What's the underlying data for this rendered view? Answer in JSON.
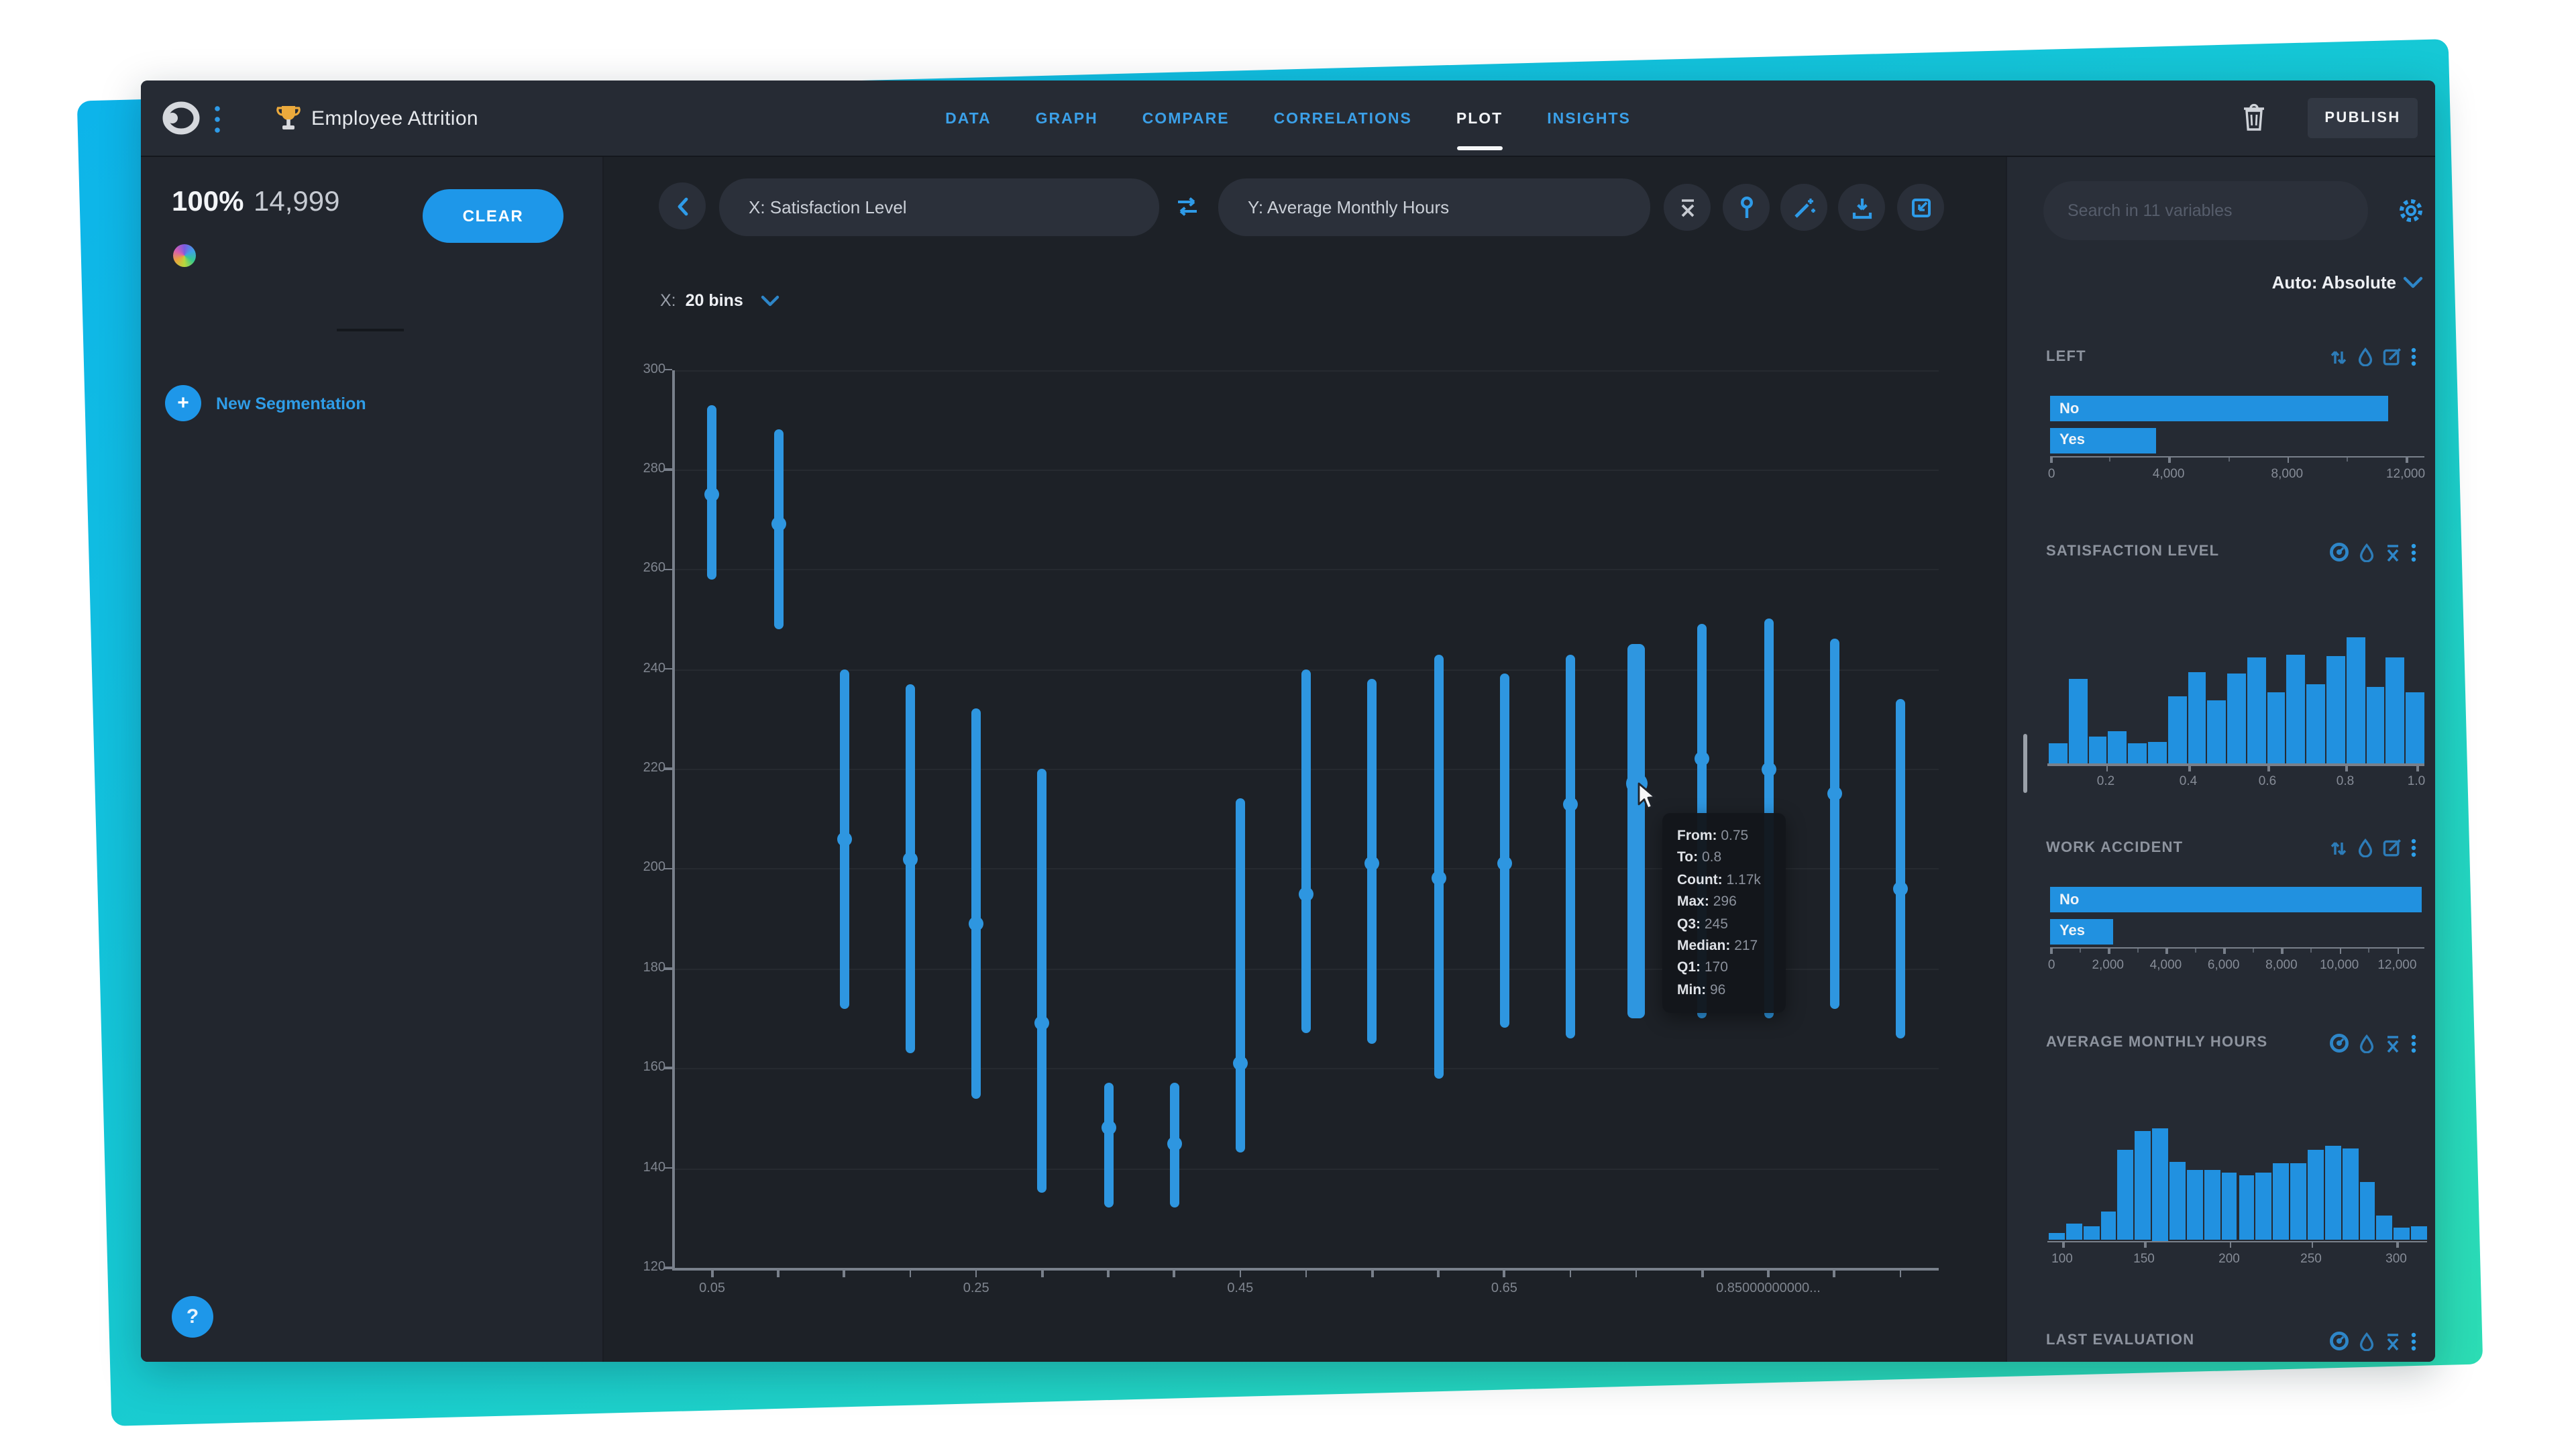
{
  "topbar": {
    "title": "Employee Attrition",
    "tabs": [
      {
        "label": "DATA",
        "active": false
      },
      {
        "label": "GRAPH",
        "active": false
      },
      {
        "label": "COMPARE",
        "active": false
      },
      {
        "label": "CORRELATIONS",
        "active": false
      },
      {
        "label": "PLOT",
        "active": true
      },
      {
        "label": "INSIGHTS",
        "active": false
      }
    ],
    "publish_label": "PUBLISH"
  },
  "left_sidebar": {
    "percent": "100%",
    "row_count": "14,999",
    "clear_label": "CLEAR",
    "new_segmentation_label": "New Segmentation",
    "plus_glyph": "+",
    "help_label": "?"
  },
  "toolbar": {
    "x_selector": "X: Satisfaction Level",
    "y_selector": "Y: Average Monthly Hours"
  },
  "bins_control": {
    "prefix": "X:",
    "value": "20 bins"
  },
  "tooltip": {
    "rows": [
      {
        "label": "From:",
        "value": "0.75"
      },
      {
        "label": "To:",
        "value": "0.8"
      },
      {
        "label": "Count:",
        "value": "1.17k"
      },
      {
        "label": "Max:",
        "value": "296"
      },
      {
        "label": "Q3:",
        "value": "245"
      },
      {
        "label": "Median:",
        "value": "217"
      },
      {
        "label": "Q1:",
        "value": "170"
      },
      {
        "label": "Min:",
        "value": "96"
      }
    ]
  },
  "right_sidebar": {
    "search_placeholder": "Search in 11 variables",
    "scale_mode": "Auto: Absolute",
    "panels": [
      {
        "title": "LEFT",
        "chart": "left"
      },
      {
        "title": "SATISFACTION LEVEL",
        "chart": "satisfaction-level"
      },
      {
        "title": "WORK ACCIDENT",
        "chart": "work-accident"
      },
      {
        "title": "AVERAGE MONTHLY HOURS",
        "chart": "average-monthly-hours"
      },
      {
        "title": "LAST EVALUATION",
        "chart": null
      }
    ]
  },
  "chart_data": [
    {
      "id": "main-plot",
      "type": "whisker",
      "xlabel": "Satisfaction Level (20 bins)",
      "ylabel": "Average Monthly Hours",
      "ylim": [
        120,
        300
      ],
      "yticks": [
        "300",
        "280",
        "260",
        "240",
        "220",
        "200",
        "180",
        "160",
        "140",
        "120"
      ],
      "xtick_labels": [
        "0.05",
        "0.25",
        "0.45",
        "0.65",
        "0.85000000000..."
      ],
      "xtick_label_bins": [
        0,
        4,
        8,
        12,
        16
      ],
      "hovered_index": 14,
      "hovered_stats": {
        "from": "0.75",
        "to": "0.8",
        "count": "1.17k",
        "max": 296,
        "q3": 245,
        "median": 217,
        "q1": 170,
        "min": 96
      },
      "bins": [
        {
          "from": 0.05,
          "to": 0.1,
          "q1": 258,
          "median": 275,
          "q3": 293
        },
        {
          "from": 0.1,
          "to": 0.15,
          "q1": 248,
          "median": 269,
          "q3": 288
        },
        {
          "from": 0.15,
          "to": 0.2,
          "q1": 172,
          "median": 206,
          "q3": 240
        },
        {
          "from": 0.2,
          "to": 0.25,
          "q1": 163,
          "median": 202,
          "q3": 237
        },
        {
          "from": 0.25,
          "to": 0.3,
          "q1": 154,
          "median": 189,
          "q3": 232
        },
        {
          "from": 0.3,
          "to": 0.35,
          "q1": 135,
          "median": 169,
          "q3": 220
        },
        {
          "from": 0.35,
          "to": 0.4,
          "q1": 132,
          "median": 148,
          "q3": 157
        },
        {
          "from": 0.4,
          "to": 0.45,
          "q1": 132,
          "median": 145,
          "q3": 157
        },
        {
          "from": 0.45,
          "to": 0.5,
          "q1": 143,
          "median": 161,
          "q3": 214
        },
        {
          "from": 0.5,
          "to": 0.55,
          "q1": 167,
          "median": 195,
          "q3": 240
        },
        {
          "from": 0.55,
          "to": 0.6,
          "q1": 165,
          "median": 201,
          "q3": 238
        },
        {
          "from": 0.6,
          "to": 0.65,
          "q1": 158,
          "median": 198,
          "q3": 243
        },
        {
          "from": 0.65,
          "to": 0.7,
          "q1": 168,
          "median": 201,
          "q3": 239
        },
        {
          "from": 0.7,
          "to": 0.75,
          "q1": 166,
          "median": 213,
          "q3": 243
        },
        {
          "from": 0.75,
          "to": 0.8,
          "q1": 170,
          "median": 217,
          "q3": 245
        },
        {
          "from": 0.8,
          "to": 0.85,
          "q1": 170,
          "median": 222,
          "q3": 249
        },
        {
          "from": 0.85,
          "to": 0.9,
          "q1": 170,
          "median": 220,
          "q3": 250
        },
        {
          "from": 0.9,
          "to": 0.95,
          "q1": 172,
          "median": 215,
          "q3": 246
        },
        {
          "from": 0.95,
          "to": 1.0,
          "q1": 166,
          "median": 196,
          "q3": 234
        }
      ]
    },
    {
      "id": "left",
      "type": "bar",
      "orientation": "horizontal",
      "categories": [
        "No",
        "Yes"
      ],
      "values": [
        11430,
        3570
      ],
      "axis_max": 12000,
      "xticks": [
        "0",
        "4,000",
        "8,000",
        "12,000"
      ],
      "xtick_values": [
        0,
        4000,
        8000,
        12000
      ]
    },
    {
      "id": "satisfaction-level",
      "type": "histogram",
      "xticks": [
        "0.2",
        "0.4",
        "0.6",
        "0.8",
        "1.0"
      ],
      "heights_rel": [
        0.16,
        0.67,
        0.21,
        0.26,
        0.16,
        0.17,
        0.53,
        0.72,
        0.5,
        0.71,
        0.84,
        0.56,
        0.86,
        0.63,
        0.85,
        1.0,
        0.61,
        0.84,
        0.56
      ]
    },
    {
      "id": "work-accident",
      "type": "bar",
      "orientation": "horizontal",
      "categories": [
        "No",
        "Yes"
      ],
      "values": [
        12830,
        2170
      ],
      "axis_max": 12000,
      "xticks": [
        "0",
        "2,000",
        "4,000",
        "6,000",
        "8,000",
        "10,000",
        "12,000"
      ],
      "xtick_values": [
        0,
        2000,
        4000,
        6000,
        8000,
        10000,
        12000
      ]
    },
    {
      "id": "average-monthly-hours",
      "type": "histogram",
      "xticks": [
        "100",
        "150",
        "200",
        "250",
        "300"
      ],
      "heights_rel": [
        0.06,
        0.15,
        0.12,
        0.26,
        0.8,
        0.97,
        1.0,
        0.7,
        0.62,
        0.63,
        0.6,
        0.58,
        0.6,
        0.68,
        0.69,
        0.8,
        0.84,
        0.82,
        0.52,
        0.22,
        0.11,
        0.13
      ]
    }
  ]
}
